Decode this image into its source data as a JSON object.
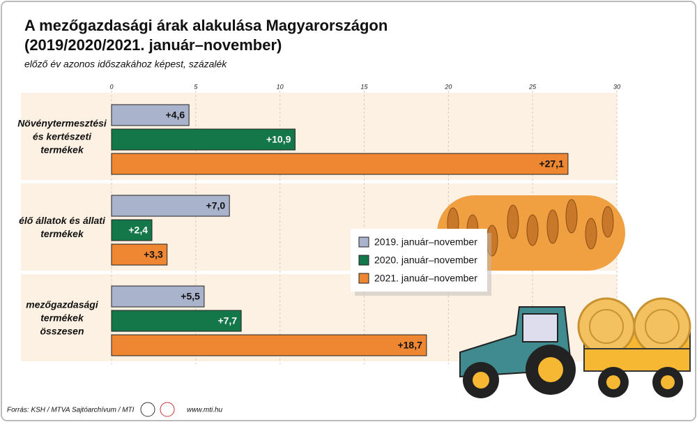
{
  "chart_data": {
    "type": "hbar",
    "title": "A mezőgazdasági árak alakulása Magyarországon",
    "title_line2": "(2019/2020/2021. január–november)",
    "subtitle": "előző év azonos időszakához képest, százalék",
    "categories": [
      "Növénytermesztési és kertészeti termékek",
      "élő állatok és állati termékek",
      "mezőgazdasági termékek összesen"
    ],
    "series": [
      {
        "name": "2019. január–november",
        "color": "#a9b3cb",
        "values": [
          4.6,
          7.0,
          5.5
        ],
        "value_labels": [
          "+4,6",
          "+7,0",
          "+5,5"
        ]
      },
      {
        "name": "2020. január–november",
        "color": "#13774a",
        "values": [
          10.9,
          2.4,
          7.7
        ],
        "value_labels": [
          "+10,9",
          "+2,4",
          "+7,7"
        ]
      },
      {
        "name": "2021. január–november",
        "color": "#ef8632",
        "values": [
          27.1,
          3.3,
          18.7
        ],
        "value_labels": [
          "+27,1",
          "+3,3",
          "+18,7"
        ]
      }
    ],
    "xlim": [
      0,
      30
    ],
    "xticks": [
      0,
      5,
      10,
      15,
      20,
      25,
      30
    ],
    "grid": true,
    "source": "Forrás: KSH / MTVA Sajtóarchívum / MTI",
    "website": "www.mti.hu"
  }
}
